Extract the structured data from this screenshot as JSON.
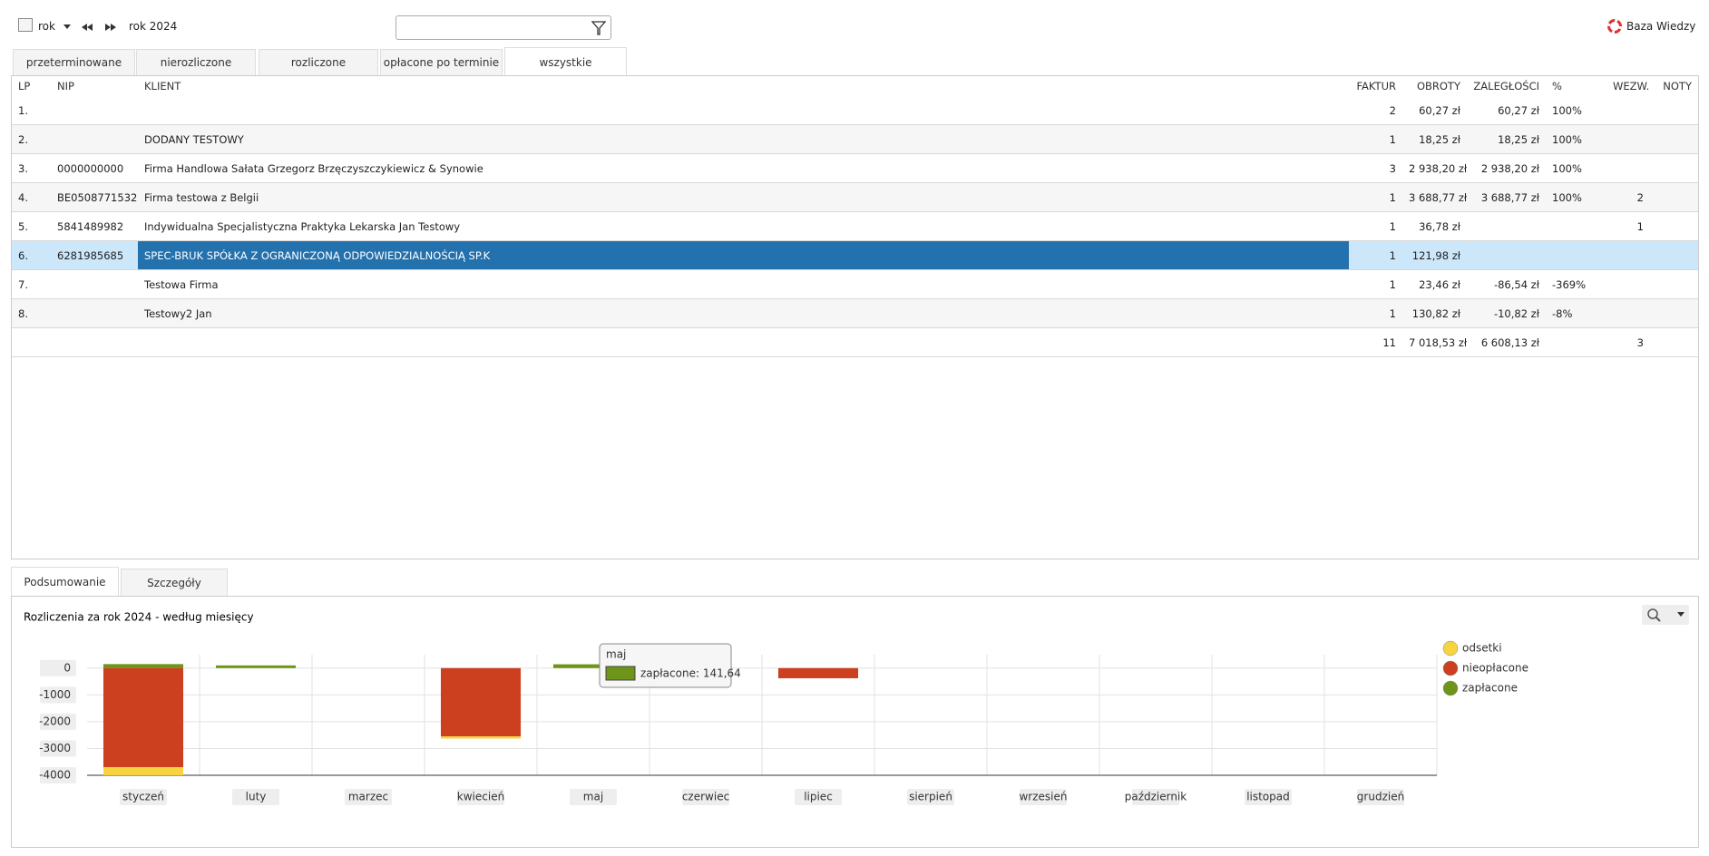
{
  "toolbar": {
    "period": "rok",
    "range": "rok 2024",
    "help": "Baza Wiedzy"
  },
  "tabs": [
    "przeterminowane",
    "nierozliczone",
    "rozliczone",
    "opłacone po terminie",
    "wszystkie"
  ],
  "active_tab": 4,
  "table": {
    "headers": [
      "LP",
      "NIP",
      "KLIENT",
      "FAKTUR",
      "OBROTY",
      "ZALEGŁOŚCI",
      "%",
      "WEZW.",
      "NOTY"
    ],
    "rows": [
      [
        "1.",
        null,
        null,
        "2",
        "60,27 zł",
        "60,27 zł",
        "100%",
        null,
        null
      ],
      [
        "2.",
        null,
        "DODANY TESTOWY",
        "1",
        "18,25 zł",
        "18,25 zł",
        "100%",
        null,
        null
      ],
      [
        "3.",
        "0000000000",
        "Firma Handlowa Sałata Grzegorz Brzęczyszczykiewicz & Synowie",
        "3",
        "2 938,20 zł",
        "2 938,20 zł",
        "100%",
        null,
        null
      ],
      [
        "4.",
        "BE0508771532",
        "Firma testowa z Belgii",
        "1",
        "3 688,77 zł",
        "3 688,77 zł",
        "100%",
        "2",
        null
      ],
      [
        "5.",
        "5841489982",
        "Indywidualna Specjalistyczna Praktyka Lekarska Jan Testowy",
        "1",
        "36,78 zł",
        null,
        null,
        "1",
        null
      ],
      [
        "6.",
        "6281985685",
        "SPEC-BRUK SPÓŁKA Z OGRANICZONĄ ODPOWIEDZIALNOŚCIĄ SP.K",
        "1",
        "121,98 zł",
        null,
        null,
        null,
        null
      ],
      [
        "7.",
        null,
        "Testowa Firma",
        "1",
        "23,46 zł",
        "-86,54 zł",
        "-369%",
        null,
        null
      ],
      [
        "8.",
        null,
        "Testowy2 Jan",
        "1",
        "130,82 zł",
        "-10,82 zł",
        "-8%",
        null,
        null
      ]
    ],
    "selected_row": 5,
    "totals": [
      null,
      null,
      null,
      "11",
      "7 018,53 zł",
      "6 608,13 zł",
      null,
      "3",
      null
    ]
  },
  "bottom_tabs": [
    "Podsumowanie",
    "Szczegóły"
  ],
  "chart_data": {
    "type": "bar",
    "stacked": true,
    "title": "Rozliczenia za rok 2024 - według miesięcy",
    "categories": [
      "styczeń",
      "luty",
      "marzec",
      "kwiecień",
      "maj",
      "czerwiec",
      "lipiec",
      "sierpień",
      "wrzesień",
      "październik",
      "listopad",
      "grudzień"
    ],
    "series": [
      {
        "name": "odsetki",
        "color": "#f7d43f",
        "values": [
          -300,
          null,
          null,
          -80,
          null,
          null,
          null,
          null,
          null,
          null,
          null,
          null
        ]
      },
      {
        "name": "nieopłacone",
        "color": "#cc3f1f",
        "values": [
          -3700,
          null,
          null,
          -2550,
          null,
          null,
          -380,
          null,
          null,
          null,
          null,
          null
        ]
      },
      {
        "name": "zapłacone",
        "color": "#6e9419",
        "values": [
          150,
          100,
          null,
          null,
          141.64,
          null,
          null,
          null,
          null,
          null,
          null,
          null
        ]
      }
    ],
    "ylim": [
      -4000,
      500
    ],
    "yticks": [
      0,
      -1000,
      -2000,
      -3000,
      -4000
    ],
    "grid": true,
    "legend": "right",
    "tooltip": {
      "title": "maj",
      "text": "zapłacone: 141,64"
    }
  }
}
